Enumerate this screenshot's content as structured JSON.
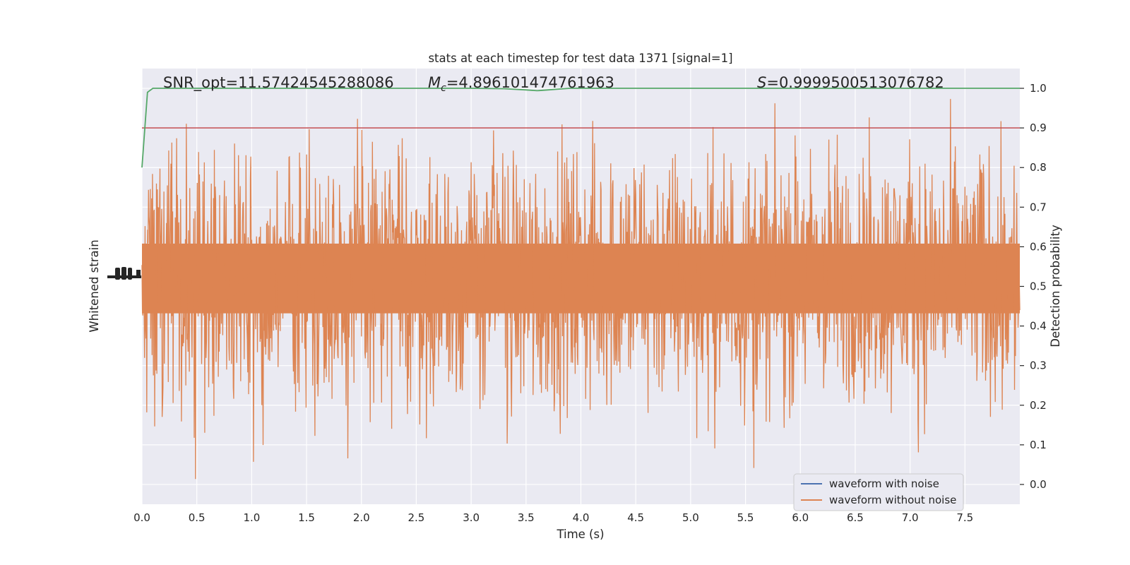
{
  "chart_data": {
    "type": "line",
    "title": "stats at each timestep for test data 1371 [signal=1]",
    "xlabel": "Time (s)",
    "ylabel_left": "Whitened strain",
    "ylabel_right": "Detection probability",
    "xlim": [
      0.0,
      8.0
    ],
    "ylim_right": [
      -0.05,
      1.05
    ],
    "x_ticks": [
      "0.0",
      "0.5",
      "1.0",
      "1.5",
      "2.0",
      "2.5",
      "3.0",
      "3.5",
      "4.0",
      "4.5",
      "5.0",
      "5.5",
      "6.0",
      "6.5",
      "7.0",
      "7.5"
    ],
    "y_right_ticks": [
      "0.0",
      "0.1",
      "0.2",
      "0.3",
      "0.4",
      "0.5",
      "0.6",
      "0.7",
      "0.8",
      "0.9",
      "1.0"
    ],
    "grid": true,
    "legend_placement": "lower-right",
    "annotations": {
      "snr": "SNR_opt=11.57424545288086",
      "mc_symbol": "M",
      "mc_subscript": "c",
      "mc_value": "=4.896101474761963",
      "s_symbol": "S",
      "s_value": "=0.9999500513076782"
    },
    "series": [
      {
        "name": "waveform with noise",
        "color": "#4c72b0",
        "description": "whitened noisy strain, fully covered by the noiseless waveform trace"
      },
      {
        "name": "waveform without noise",
        "color": "#dd8452",
        "axis": "left",
        "render": "dense oscillation",
        "envelope_detection_scale": {
          "center": 0.52,
          "typical_half_width": 0.16,
          "max_high": 1.0,
          "min_low": 0.0
        }
      },
      {
        "color": "#55a868",
        "axis": "right",
        "x": [
          0.0,
          0.05,
          0.1,
          0.2,
          0.5,
          1.0,
          2.0,
          3.0,
          3.3,
          3.5,
          3.6,
          3.7,
          3.9,
          4.5,
          5.0,
          6.0,
          7.0,
          8.0
        ],
        "values": [
          0.8,
          0.99,
          1.0,
          1.0,
          1.0,
          1.0,
          1.0,
          1.0,
          0.999,
          0.996,
          0.994,
          0.996,
          1.0,
          1.0,
          1.0,
          1.0,
          1.0,
          1.0
        ]
      },
      {
        "color": "#c44e52",
        "axis": "right",
        "type": "hline",
        "value": 0.9
      }
    ]
  }
}
